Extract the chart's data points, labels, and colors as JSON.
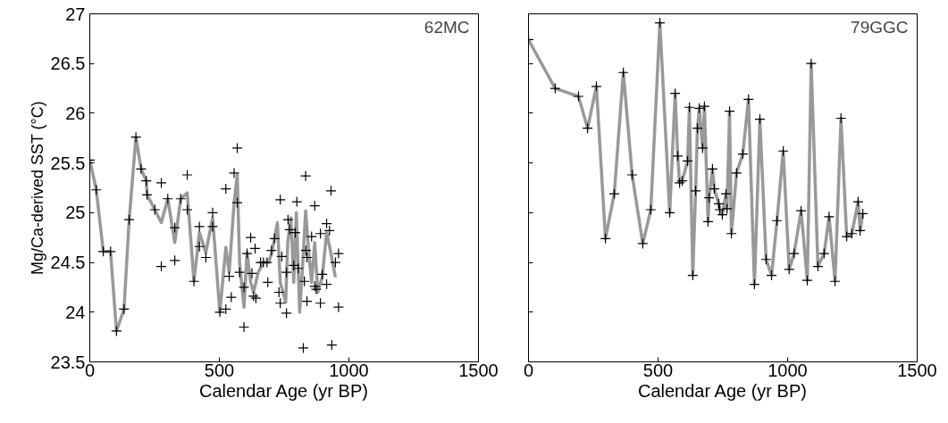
{
  "chart_data": [
    {
      "type": "line",
      "ylabel": "Mg/Ca-derived SST (°C)",
      "xlabel": "Calendar Age (yr BP)",
      "annotations": [
        "62MC"
      ],
      "xlim": [
        0,
        1500
      ],
      "ylim": [
        23.5,
        27
      ],
      "xticks": [
        0,
        500,
        1000,
        1500
      ],
      "yticks": [
        23.5,
        24,
        24.5,
        25,
        25.5,
        26,
        26.5,
        27
      ],
      "grid": false,
      "series": [
        {
          "marker": "none",
          "color": "#999999",
          "x": [
            0,
            25,
            52,
            80,
            103,
            132,
            152,
            178,
            198,
            218,
            221,
            251,
            276,
            301,
            328,
            351,
            376,
            402,
            423,
            448,
            474,
            502,
            525,
            538,
            557,
            569,
            578,
            595,
            607,
            621,
            632,
            650,
            670,
            690,
            703,
            724,
            735,
            756,
            764,
            776,
            787,
            797,
            810,
            822,
            833,
            845,
            856,
            868,
            880,
            897,
            914,
            930,
            948
          ],
          "values": [
            25.53,
            25.23,
            24.61,
            24.61,
            23.81,
            24.03,
            24.93,
            25.76,
            25.44,
            25.32,
            25.18,
            25.03,
            24.9,
            25.14,
            24.7,
            25.14,
            25.2,
            24.31,
            24.8,
            24.6,
            24.95,
            24.0,
            24.65,
            24.4,
            25.1,
            25.38,
            24.5,
            24.05,
            24.6,
            24.3,
            24.2,
            24.4,
            24.5,
            24.5,
            24.6,
            24.9,
            24.3,
            24.1,
            24.7,
            24.95,
            24.3,
            25.0,
            24.0,
            24.5,
            25.02,
            24.6,
            24.3,
            24.7,
            24.2,
            24.35,
            24.8,
            24.6,
            24.35
          ]
        },
        {
          "type": "scatter",
          "marker": "cross",
          "color": "#000000",
          "x": [
            0,
            25,
            52,
            80,
            103,
            132,
            152,
            178,
            198,
            218,
            221,
            251,
            276,
            276,
            301,
            328,
            328,
            351,
            376,
            376,
            402,
            423,
            423,
            448,
            474,
            474,
            502,
            525,
            525,
            538,
            546,
            557,
            569,
            569,
            578,
            595,
            595,
            607,
            621,
            626,
            632,
            641,
            638,
            659,
            670,
            684,
            687,
            701,
            713,
            730,
            735,
            735,
            741,
            759,
            759,
            765,
            771,
            787,
            793,
            799,
            805,
            824,
            828,
            833,
            834,
            838,
            838,
            856,
            868,
            868,
            874,
            890,
            890,
            897,
            914,
            914,
            925,
            931,
            934,
            948,
            960,
            960
          ],
          "values": [
            25.53,
            25.23,
            24.61,
            24.61,
            23.81,
            24.03,
            24.93,
            25.76,
            25.44,
            25.32,
            25.18,
            25.03,
            25.3,
            24.46,
            25.14,
            24.85,
            24.52,
            25.14,
            25.38,
            25.03,
            24.31,
            24.86,
            24.66,
            24.55,
            25.0,
            24.86,
            24.0,
            24.03,
            25.24,
            24.36,
            24.15,
            25.4,
            25.65,
            25.1,
            24.4,
            24.25,
            23.85,
            24.59,
            24.75,
            24.39,
            24.16,
            24.14,
            24.64,
            24.5,
            24.5,
            24.5,
            24.3,
            24.62,
            24.74,
            24.2,
            25.13,
            24.09,
            24.56,
            24.4,
            23.99,
            24.93,
            24.83,
            24.47,
            24.8,
            25.11,
            24.44,
            23.64,
            24.31,
            25.37,
            24.62,
            24.55,
            24.11,
            24.76,
            25.07,
            24.26,
            24.23,
            24.79,
            24.09,
            24.38,
            24.89,
            24.28,
            24.82,
            25.22,
            23.67,
            24.5,
            24.59,
            24.05
          ]
        }
      ]
    },
    {
      "type": "line",
      "xlabel": "Calendar Age (yr BP)",
      "annotations": [
        "79GGC"
      ],
      "xlim": [
        0,
        1500
      ],
      "ylim": [
        23.5,
        27
      ],
      "xticks": [
        0,
        500,
        1000,
        1500
      ],
      "yticks": [
        23.5,
        24,
        24.5,
        25,
        25.5,
        26,
        26.5,
        27
      ],
      "tick_labels": "x",
      "grid": false,
      "series": [
        {
          "marker": "none",
          "color": "#999999",
          "x": [
            0,
            103,
            193,
            228,
            262,
            297,
            331,
            366,
            400,
            441,
            472,
            507,
            545,
            566,
            576,
            583,
            593,
            614,
            621,
            634,
            645,
            652,
            659,
            672,
            679,
            693,
            697,
            710,
            717,
            734,
            738,
            748,
            762,
            766,
            776,
            783,
            803,
            827,
            849,
            872,
            893,
            917,
            938,
            959,
            983,
            1006,
            1025,
            1052,
            1076,
            1091,
            1117,
            1141,
            1160,
            1183,
            1206,
            1228,
            1248,
            1272,
            1280,
            1290
          ],
          "values": [
            26.74,
            26.25,
            26.17,
            25.85,
            26.27,
            24.74,
            25.19,
            26.41,
            25.38,
            24.69,
            25.03,
            26.91,
            25.0,
            26.2,
            25.57,
            25.3,
            25.32,
            25.52,
            26.06,
            24.37,
            25.22,
            25.85,
            26.05,
            25.65,
            26.07,
            24.91,
            25.15,
            25.44,
            25.24,
            25.09,
            25.03,
            24.98,
            25.19,
            25.04,
            26.02,
            24.79,
            25.4,
            25.59,
            26.14,
            24.28,
            25.94,
            24.53,
            24.37,
            24.92,
            25.62,
            24.43,
            24.59,
            25.02,
            24.32,
            26.5,
            24.46,
            24.59,
            24.96,
            24.31,
            25.95,
            24.76,
            24.79,
            25.11,
            24.82,
            24.99
          ]
        },
        {
          "type": "scatter",
          "marker": "cross",
          "color": "#000000",
          "x": [
            0,
            103,
            193,
            228,
            262,
            297,
            331,
            366,
            400,
            441,
            472,
            507,
            545,
            566,
            576,
            583,
            593,
            614,
            621,
            634,
            645,
            652,
            659,
            672,
            679,
            693,
            697,
            710,
            717,
            734,
            738,
            748,
            762,
            766,
            776,
            783,
            803,
            827,
            849,
            872,
            893,
            917,
            938,
            959,
            983,
            1006,
            1025,
            1052,
            1076,
            1091,
            1117,
            1141,
            1160,
            1183,
            1206,
            1228,
            1248,
            1272,
            1280,
            1290
          ],
          "values": [
            26.74,
            26.25,
            26.17,
            25.85,
            26.27,
            24.74,
            25.19,
            26.41,
            25.38,
            24.69,
            25.03,
            26.91,
            25.0,
            26.2,
            25.57,
            25.3,
            25.32,
            25.52,
            26.06,
            24.37,
            25.22,
            25.85,
            26.05,
            25.65,
            26.07,
            24.91,
            25.15,
            25.44,
            25.24,
            25.09,
            25.03,
            24.98,
            25.19,
            25.04,
            26.02,
            24.79,
            25.4,
            25.59,
            26.14,
            24.28,
            25.94,
            24.53,
            24.37,
            24.92,
            25.62,
            24.43,
            24.59,
            25.02,
            24.32,
            26.5,
            24.46,
            24.59,
            24.96,
            24.31,
            25.95,
            24.76,
            24.79,
            25.11,
            24.82,
            24.99
          ]
        }
      ]
    }
  ]
}
